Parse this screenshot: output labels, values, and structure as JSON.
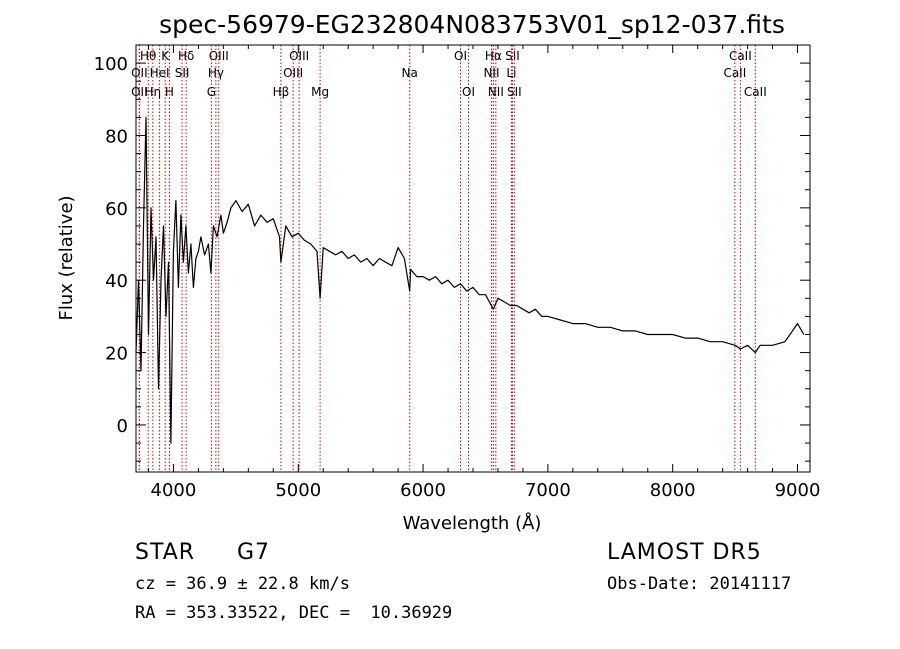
{
  "chart_data": {
    "type": "line",
    "title": "spec-56979-EG232804N083753V01_sp12-037.fits",
    "xlabel": "Wavelength (Å)",
    "ylabel": "Flux (relative)",
    "xlim": [
      3700,
      9100
    ],
    "ylim": [
      -13,
      105
    ],
    "xticks": [
      4000,
      5000,
      6000,
      7000,
      8000,
      9000
    ],
    "yticks": [
      0,
      20,
      40,
      60,
      80,
      100
    ],
    "grid": false,
    "series": [
      {
        "color": "#000000",
        "x": [
          3700,
          3720,
          3740,
          3760,
          3780,
          3800,
          3820,
          3840,
          3860,
          3880,
          3900,
          3920,
          3940,
          3960,
          3980,
          4000,
          4020,
          4040,
          4060,
          4080,
          4100,
          4120,
          4140,
          4160,
          4180,
          4200,
          4220,
          4250,
          4280,
          4300,
          4320,
          4350,
          4380,
          4400,
          4430,
          4460,
          4500,
          4550,
          4600,
          4650,
          4700,
          4750,
          4800,
          4850,
          4861,
          4900,
          4950,
          5000,
          5050,
          5100,
          5150,
          5175,
          5200,
          5250,
          5300,
          5350,
          5400,
          5450,
          5500,
          5550,
          5600,
          5650,
          5700,
          5750,
          5800,
          5850,
          5893,
          5900,
          5950,
          6000,
          6050,
          6100,
          6150,
          6200,
          6250,
          6300,
          6350,
          6400,
          6450,
          6500,
          6563,
          6600,
          6650,
          6700,
          6750,
          6800,
          6850,
          6900,
          6950,
          7000,
          7100,
          7200,
          7300,
          7400,
          7500,
          7600,
          7700,
          7800,
          7900,
          8000,
          8100,
          8200,
          8300,
          8400,
          8500,
          8542,
          8600,
          8662,
          8700,
          8800,
          8900,
          9000,
          9050
        ],
        "y": [
          20,
          40,
          15,
          55,
          85,
          25,
          60,
          40,
          52,
          10,
          40,
          55,
          30,
          45,
          -5,
          48,
          62,
          38,
          58,
          45,
          55,
          42,
          50,
          38,
          46,
          48,
          52,
          47,
          50,
          42,
          55,
          52,
          58,
          53,
          56,
          60,
          62,
          59,
          61,
          55,
          58,
          56,
          57,
          52,
          45,
          55,
          52,
          53,
          51,
          50,
          48,
          35,
          49,
          48,
          47,
          48,
          46,
          47,
          45,
          46,
          44,
          46,
          45,
          44,
          49,
          46,
          37,
          43,
          41,
          41,
          40,
          41,
          39,
          40,
          38,
          39,
          37,
          38,
          36,
          36,
          32,
          35,
          34,
          33,
          33,
          32,
          31,
          32,
          30,
          30,
          29,
          28,
          28,
          27,
          27,
          26,
          26,
          25,
          25,
          25,
          24,
          24,
          23,
          23,
          22,
          21,
          22,
          20,
          22,
          22,
          23,
          28,
          25
        ]
      }
    ],
    "lines": [
      {
        "name": "OII",
        "x": 3727,
        "row": 1
      },
      {
        "name": "OII",
        "x": 3727,
        "row": 2
      },
      {
        "name": "Hθ",
        "x": 3798,
        "row": 0
      },
      {
        "name": "K",
        "x": 3934,
        "row": 0
      },
      {
        "name": "HeI",
        "x": 3889,
        "row": 1
      },
      {
        "name": "Hη",
        "x": 3835,
        "row": 2
      },
      {
        "name": "H",
        "x": 3968,
        "row": 2
      },
      {
        "name": "Hδ",
        "x": 4102,
        "row": 0
      },
      {
        "name": "SII",
        "x": 4069,
        "row": 1
      },
      {
        "name": "OIII",
        "x": 4363,
        "row": 0
      },
      {
        "name": "Hγ",
        "x": 4340,
        "row": 1
      },
      {
        "name": "G",
        "x": 4304,
        "row": 2
      },
      {
        "name": "OIII",
        "x": 5007,
        "row": 0
      },
      {
        "name": "OIII",
        "x": 4959,
        "row": 1
      },
      {
        "name": "Hβ",
        "x": 4861,
        "row": 2
      },
      {
        "name": "Mg",
        "x": 5175,
        "row": 2
      },
      {
        "name": "Na",
        "x": 5893,
        "row": 1
      },
      {
        "name": "OI",
        "x": 6300,
        "row": 0
      },
      {
        "name": "OI",
        "x": 6364,
        "row": 2
      },
      {
        "name": "Hα",
        "x": 6563,
        "row": 0
      },
      {
        "name": "SII",
        "x": 6716,
        "row": 0
      },
      {
        "name": "NII",
        "x": 6548,
        "row": 1
      },
      {
        "name": "Li",
        "x": 6708,
        "row": 1
      },
      {
        "name": "NII",
        "x": 6583,
        "row": 2
      },
      {
        "name": "SII",
        "x": 6731,
        "row": 2
      },
      {
        "name": "CaII",
        "x": 8542,
        "row": 0
      },
      {
        "name": "CaII",
        "x": 8498,
        "row": 1
      },
      {
        "name": "CaII",
        "x": 8662,
        "row": 2
      }
    ],
    "line_color": "#cc0000"
  },
  "info": {
    "class": "STAR",
    "subclass": "G7",
    "survey": "LAMOST DR5",
    "cz": "cz = 36.9 ± 22.8 km/s",
    "obs_date": "Obs-Date: 20141117",
    "radec": "RA = 353.33522, DEC =  10.36929"
  }
}
